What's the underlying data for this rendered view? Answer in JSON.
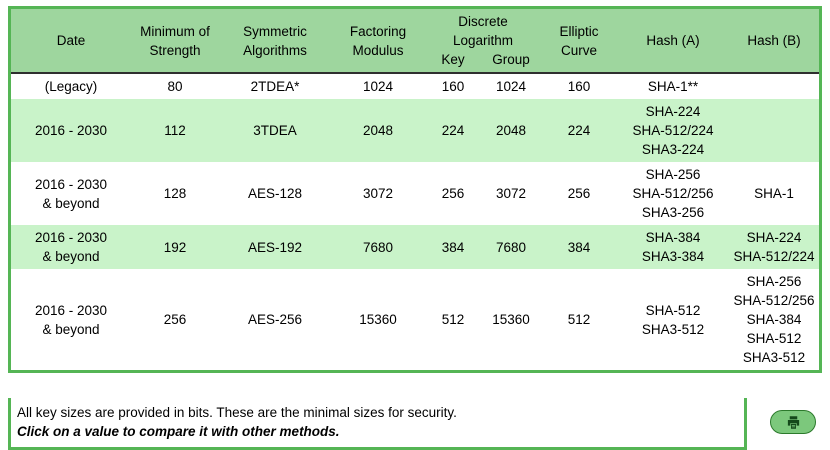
{
  "colors": {
    "border_green": "#55b555",
    "header_green": "#9ed69e",
    "alt_row_green": "#c9f3c9",
    "button_green": "#7cc87c"
  },
  "table": {
    "headers": {
      "date": "Date",
      "min_strength": "Minimum of\nStrength",
      "symmetric": "Symmetric\nAlgorithms",
      "factoring": "Factoring\nModulus",
      "discrete_log": "Discrete\nLogarithm",
      "dl_key": "Key",
      "dl_group": "Group",
      "elliptic": "Elliptic\nCurve",
      "hash_a": "Hash (A)",
      "hash_b": "Hash (B)"
    },
    "rows": [
      {
        "date": "(Legacy)",
        "min": "80",
        "sym": "2TDEA*",
        "fact": "1024",
        "key": "160",
        "group": "1024",
        "ec": "160",
        "hash_a": [
          "SHA-1**"
        ],
        "hash_b": []
      },
      {
        "date": "2016 - 2030",
        "min": "112",
        "sym": "3TDEA",
        "fact": "2048",
        "key": "224",
        "group": "2048",
        "ec": "224",
        "hash_a": [
          "SHA-224",
          "SHA-512/224",
          "SHA3-224"
        ],
        "hash_b": []
      },
      {
        "date": "2016 - 2030\n& beyond",
        "min": "128",
        "sym": "AES-128",
        "fact": "3072",
        "key": "256",
        "group": "3072",
        "ec": "256",
        "hash_a": [
          "SHA-256",
          "SHA-512/256",
          "SHA3-256"
        ],
        "hash_b": [
          "SHA-1"
        ]
      },
      {
        "date": "2016 - 2030\n& beyond",
        "min": "192",
        "sym": "AES-192",
        "fact": "7680",
        "key": "384",
        "group": "7680",
        "ec": "384",
        "hash_a": [
          "SHA-384",
          "SHA3-384"
        ],
        "hash_b": [
          "SHA-224",
          "SHA-512/224"
        ]
      },
      {
        "date": "2016 - 2030\n& beyond",
        "min": "256",
        "sym": "AES-256",
        "fact": "15360",
        "key": "512",
        "group": "15360",
        "ec": "512",
        "hash_a": [
          "SHA-512",
          "SHA3-512"
        ],
        "hash_b": [
          "SHA-256",
          "SHA-512/256",
          "SHA-384",
          "SHA-512",
          "SHA3-512"
        ]
      }
    ]
  },
  "footer": {
    "line1": "All key sizes are provided in bits. These are the minimal sizes for security.",
    "line2": "Click on a value to compare it with other methods."
  },
  "print_button": {
    "icon": "printer-icon"
  }
}
